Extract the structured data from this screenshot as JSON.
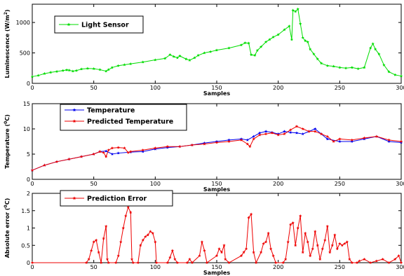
{
  "chart_data": [
    {
      "type": "line",
      "xlabel": "Samples",
      "ylabel": "Luminescence (W/m^2)",
      "ylabel_main": "Luminescence (W/m",
      "ylabel_sup": "2",
      "ylabel_end": ")",
      "xlim": [
        0,
        300
      ],
      "ylim": [
        0,
        1300
      ],
      "xticks": [
        0,
        50,
        100,
        150,
        200,
        250,
        300
      ],
      "yticks": [
        0,
        500,
        1000
      ],
      "legend_position": "top-left",
      "series": [
        {
          "name": "Light Sensor",
          "color": "#00dd00",
          "marker": "star",
          "points": [
            [
              0,
              110
            ],
            [
              5,
              130
            ],
            [
              10,
              160
            ],
            [
              15,
              180
            ],
            [
              20,
              195
            ],
            [
              25,
              210
            ],
            [
              28,
              220
            ],
            [
              30,
              215
            ],
            [
              33,
              200
            ],
            [
              36,
              210
            ],
            [
              40,
              235
            ],
            [
              45,
              245
            ],
            [
              50,
              240
            ],
            [
              55,
              225
            ],
            [
              60,
              200
            ],
            [
              62,
              225
            ],
            [
              65,
              260
            ],
            [
              70,
              290
            ],
            [
              75,
              305
            ],
            [
              80,
              320
            ],
            [
              90,
              350
            ],
            [
              100,
              385
            ],
            [
              108,
              410
            ],
            [
              112,
              470
            ],
            [
              115,
              440
            ],
            [
              118,
              420
            ],
            [
              120,
              450
            ],
            [
              125,
              400
            ],
            [
              128,
              380
            ],
            [
              132,
              420
            ],
            [
              135,
              460
            ],
            [
              140,
              500
            ],
            [
              145,
              520
            ],
            [
              150,
              545
            ],
            [
              160,
              580
            ],
            [
              170,
              630
            ],
            [
              173,
              665
            ],
            [
              176,
              660
            ],
            [
              178,
              470
            ],
            [
              181,
              460
            ],
            [
              183,
              540
            ],
            [
              186,
              600
            ],
            [
              190,
              680
            ],
            [
              193,
              720
            ],
            [
              196,
              760
            ],
            [
              200,
              800
            ],
            [
              205,
              880
            ],
            [
              209,
              940
            ],
            [
              211,
              720
            ],
            [
              212,
              1200
            ],
            [
              214,
              1180
            ],
            [
              216,
              1220
            ],
            [
              218,
              980
            ],
            [
              220,
              750
            ],
            [
              222,
              700
            ],
            [
              224,
              680
            ],
            [
              226,
              560
            ],
            [
              229,
              480
            ],
            [
              232,
              400
            ],
            [
              235,
              330
            ],
            [
              240,
              290
            ],
            [
              245,
              280
            ],
            [
              250,
              260
            ],
            [
              255,
              250
            ],
            [
              260,
              260
            ],
            [
              265,
              240
            ],
            [
              270,
              260
            ],
            [
              275,
              580
            ],
            [
              277,
              650
            ],
            [
              279,
              560
            ],
            [
              282,
              480
            ],
            [
              286,
              300
            ],
            [
              290,
              190
            ],
            [
              295,
              140
            ],
            [
              300,
              120
            ]
          ]
        }
      ]
    },
    {
      "type": "line",
      "xlabel": "Samples",
      "ylabel": "Temperature (°C)",
      "ylabel_main": "Temperature (",
      "ylabel_sup": "0",
      "ylabel_end": "C)",
      "xlim": [
        0,
        300
      ],
      "ylim": [
        0,
        15
      ],
      "xticks": [
        0,
        50,
        100,
        150,
        200,
        250,
        300
      ],
      "yticks": [
        0,
        5,
        10,
        15
      ],
      "legend_position": "top-left",
      "series": [
        {
          "name": "Temperature",
          "color": "#0000ee",
          "marker": "star",
          "points": [
            [
              0,
              1.8
            ],
            [
              10,
              2.8
            ],
            [
              20,
              3.5
            ],
            [
              30,
              4.0
            ],
            [
              40,
              4.5
            ],
            [
              50,
              5.0
            ],
            [
              55,
              5.5
            ],
            [
              60,
              5.6
            ],
            [
              65,
              5.0
            ],
            [
              70,
              5.2
            ],
            [
              80,
              5.4
            ],
            [
              90,
              5.5
            ],
            [
              100,
              6.0
            ],
            [
              110,
              6.3
            ],
            [
              120,
              6.5
            ],
            [
              130,
              6.8
            ],
            [
              140,
              7.2
            ],
            [
              150,
              7.5
            ],
            [
              160,
              7.8
            ],
            [
              170,
              8.0
            ],
            [
              175,
              7.8
            ],
            [
              180,
              8.5
            ],
            [
              185,
              9.2
            ],
            [
              190,
              9.5
            ],
            [
              195,
              9.3
            ],
            [
              200,
              9.0
            ],
            [
              205,
              9.5
            ],
            [
              210,
              9.3
            ],
            [
              215,
              9.2
            ],
            [
              220,
              9.0
            ],
            [
              225,
              9.5
            ],
            [
              230,
              10.0
            ],
            [
              235,
              9.0
            ],
            [
              240,
              8.0
            ],
            [
              250,
              7.5
            ],
            [
              260,
              7.5
            ],
            [
              270,
              8.0
            ],
            [
              280,
              8.5
            ],
            [
              290,
              7.5
            ],
            [
              300,
              7.3
            ]
          ]
        },
        {
          "name": "Predicted Temperature",
          "color": "#ee0000",
          "marker": "star",
          "points": [
            [
              0,
              1.8
            ],
            [
              10,
              2.8
            ],
            [
              20,
              3.5
            ],
            [
              30,
              4.0
            ],
            [
              40,
              4.5
            ],
            [
              50,
              5.0
            ],
            [
              55,
              5.5
            ],
            [
              58,
              5.3
            ],
            [
              60,
              4.5
            ],
            [
              62,
              5.8
            ],
            [
              65,
              6.2
            ],
            [
              70,
              6.3
            ],
            [
              75,
              6.2
            ],
            [
              78,
              5.3
            ],
            [
              80,
              5.5
            ],
            [
              90,
              5.8
            ],
            [
              100,
              6.2
            ],
            [
              110,
              6.5
            ],
            [
              120,
              6.5
            ],
            [
              130,
              6.8
            ],
            [
              140,
              7.0
            ],
            [
              150,
              7.3
            ],
            [
              160,
              7.5
            ],
            [
              170,
              7.8
            ],
            [
              175,
              7.0
            ],
            [
              177,
              6.5
            ],
            [
              180,
              8.0
            ],
            [
              185,
              8.8
            ],
            [
              190,
              9.0
            ],
            [
              195,
              9.2
            ],
            [
              200,
              8.8
            ],
            [
              205,
              9.0
            ],
            [
              210,
              9.8
            ],
            [
              215,
              10.5
            ],
            [
              220,
              10.0
            ],
            [
              225,
              9.5
            ],
            [
              230,
              9.5
            ],
            [
              235,
              9.0
            ],
            [
              240,
              8.5
            ],
            [
              245,
              7.5
            ],
            [
              250,
              8.0
            ],
            [
              260,
              7.8
            ],
            [
              270,
              8.2
            ],
            [
              280,
              8.5
            ],
            [
              290,
              7.8
            ],
            [
              300,
              7.5
            ]
          ]
        }
      ]
    },
    {
      "type": "line",
      "xlabel": "Samples",
      "ylabel": "Absolute error (°C)",
      "ylabel_main": "Absolute error (",
      "ylabel_sup": "0",
      "ylabel_end": "C)",
      "xlim": [
        0,
        300
      ],
      "ylim": [
        0,
        2
      ],
      "xticks": [
        0,
        50,
        100,
        150,
        200,
        250,
        300
      ],
      "yticks": [
        0,
        0.5,
        1,
        1.5,
        2
      ],
      "legend_position": "top-left",
      "series": [
        {
          "name": "Prediction Error",
          "color": "#ee0000",
          "marker": "star",
          "points": [
            [
              0,
              0
            ],
            [
              44,
              0
            ],
            [
              46,
              0.1
            ],
            [
              48,
              0.35
            ],
            [
              50,
              0.6
            ],
            [
              52,
              0.65
            ],
            [
              54,
              0.3
            ],
            [
              56,
              0
            ],
            [
              58,
              0.7
            ],
            [
              60,
              1.05
            ],
            [
              61,
              0.1
            ],
            [
              62,
              0
            ],
            [
              68,
              0
            ],
            [
              70,
              0.2
            ],
            [
              72,
              0.6
            ],
            [
              74,
              1.0
            ],
            [
              76,
              1.35
            ],
            [
              78,
              1.6
            ],
            [
              80,
              1.45
            ],
            [
              81,
              0.1
            ],
            [
              82,
              0
            ],
            [
              86,
              0
            ],
            [
              88,
              0.5
            ],
            [
              90,
              0.65
            ],
            [
              92,
              0.75
            ],
            [
              94,
              0.8
            ],
            [
              96,
              0.9
            ],
            [
              98,
              0.85
            ],
            [
              100,
              0.6
            ],
            [
              101,
              0
            ],
            [
              110,
              0
            ],
            [
              112,
              0.15
            ],
            [
              114,
              0.35
            ],
            [
              116,
              0.1
            ],
            [
              118,
              0
            ],
            [
              126,
              0
            ],
            [
              128,
              0.1
            ],
            [
              130,
              0
            ],
            [
              136,
              0.2
            ],
            [
              138,
              0.6
            ],
            [
              140,
              0.35
            ],
            [
              142,
              0
            ],
            [
              150,
              0.2
            ],
            [
              152,
              0.4
            ],
            [
              154,
              0.3
            ],
            [
              156,
              0.5
            ],
            [
              157,
              0.1
            ],
            [
              160,
              0
            ],
            [
              170,
              0.2
            ],
            [
              172,
              0.3
            ],
            [
              174,
              0.4
            ],
            [
              176,
              1.3
            ],
            [
              178,
              1.4
            ],
            [
              180,
              0.3
            ],
            [
              182,
              0
            ],
            [
              186,
              0.3
            ],
            [
              188,
              0.55
            ],
            [
              190,
              0.6
            ],
            [
              192,
              0.85
            ],
            [
              194,
              0.4
            ],
            [
              196,
              0.2
            ],
            [
              198,
              0
            ],
            [
              204,
              0
            ],
            [
              206,
              0.1
            ],
            [
              208,
              0.6
            ],
            [
              210,
              1.1
            ],
            [
              212,
              1.15
            ],
            [
              214,
              0.5
            ],
            [
              216,
              1.0
            ],
            [
              218,
              1.35
            ],
            [
              220,
              0.3
            ],
            [
              222,
              0.85
            ],
            [
              224,
              0.6
            ],
            [
              226,
              0.2
            ],
            [
              228,
              0.4
            ],
            [
              230,
              0.9
            ],
            [
              232,
              0.5
            ],
            [
              234,
              0.1
            ],
            [
              236,
              0.4
            ],
            [
              238,
              0.65
            ],
            [
              240,
              1.05
            ],
            [
              242,
              0.3
            ],
            [
              244,
              0.5
            ],
            [
              246,
              0.8
            ],
            [
              248,
              0.4
            ],
            [
              250,
              0.55
            ],
            [
              252,
              0.5
            ],
            [
              254,
              0.55
            ],
            [
              256,
              0.6
            ],
            [
              258,
              0.1
            ],
            [
              260,
              0
            ],
            [
              264,
              0
            ],
            [
              266,
              0.05
            ],
            [
              270,
              0.1
            ],
            [
              275,
              0
            ],
            [
              280,
              0.05
            ],
            [
              285,
              0.1
            ],
            [
              290,
              0
            ],
            [
              295,
              0.1
            ],
            [
              298,
              0.2
            ],
            [
              300,
              0
            ]
          ]
        }
      ]
    }
  ]
}
